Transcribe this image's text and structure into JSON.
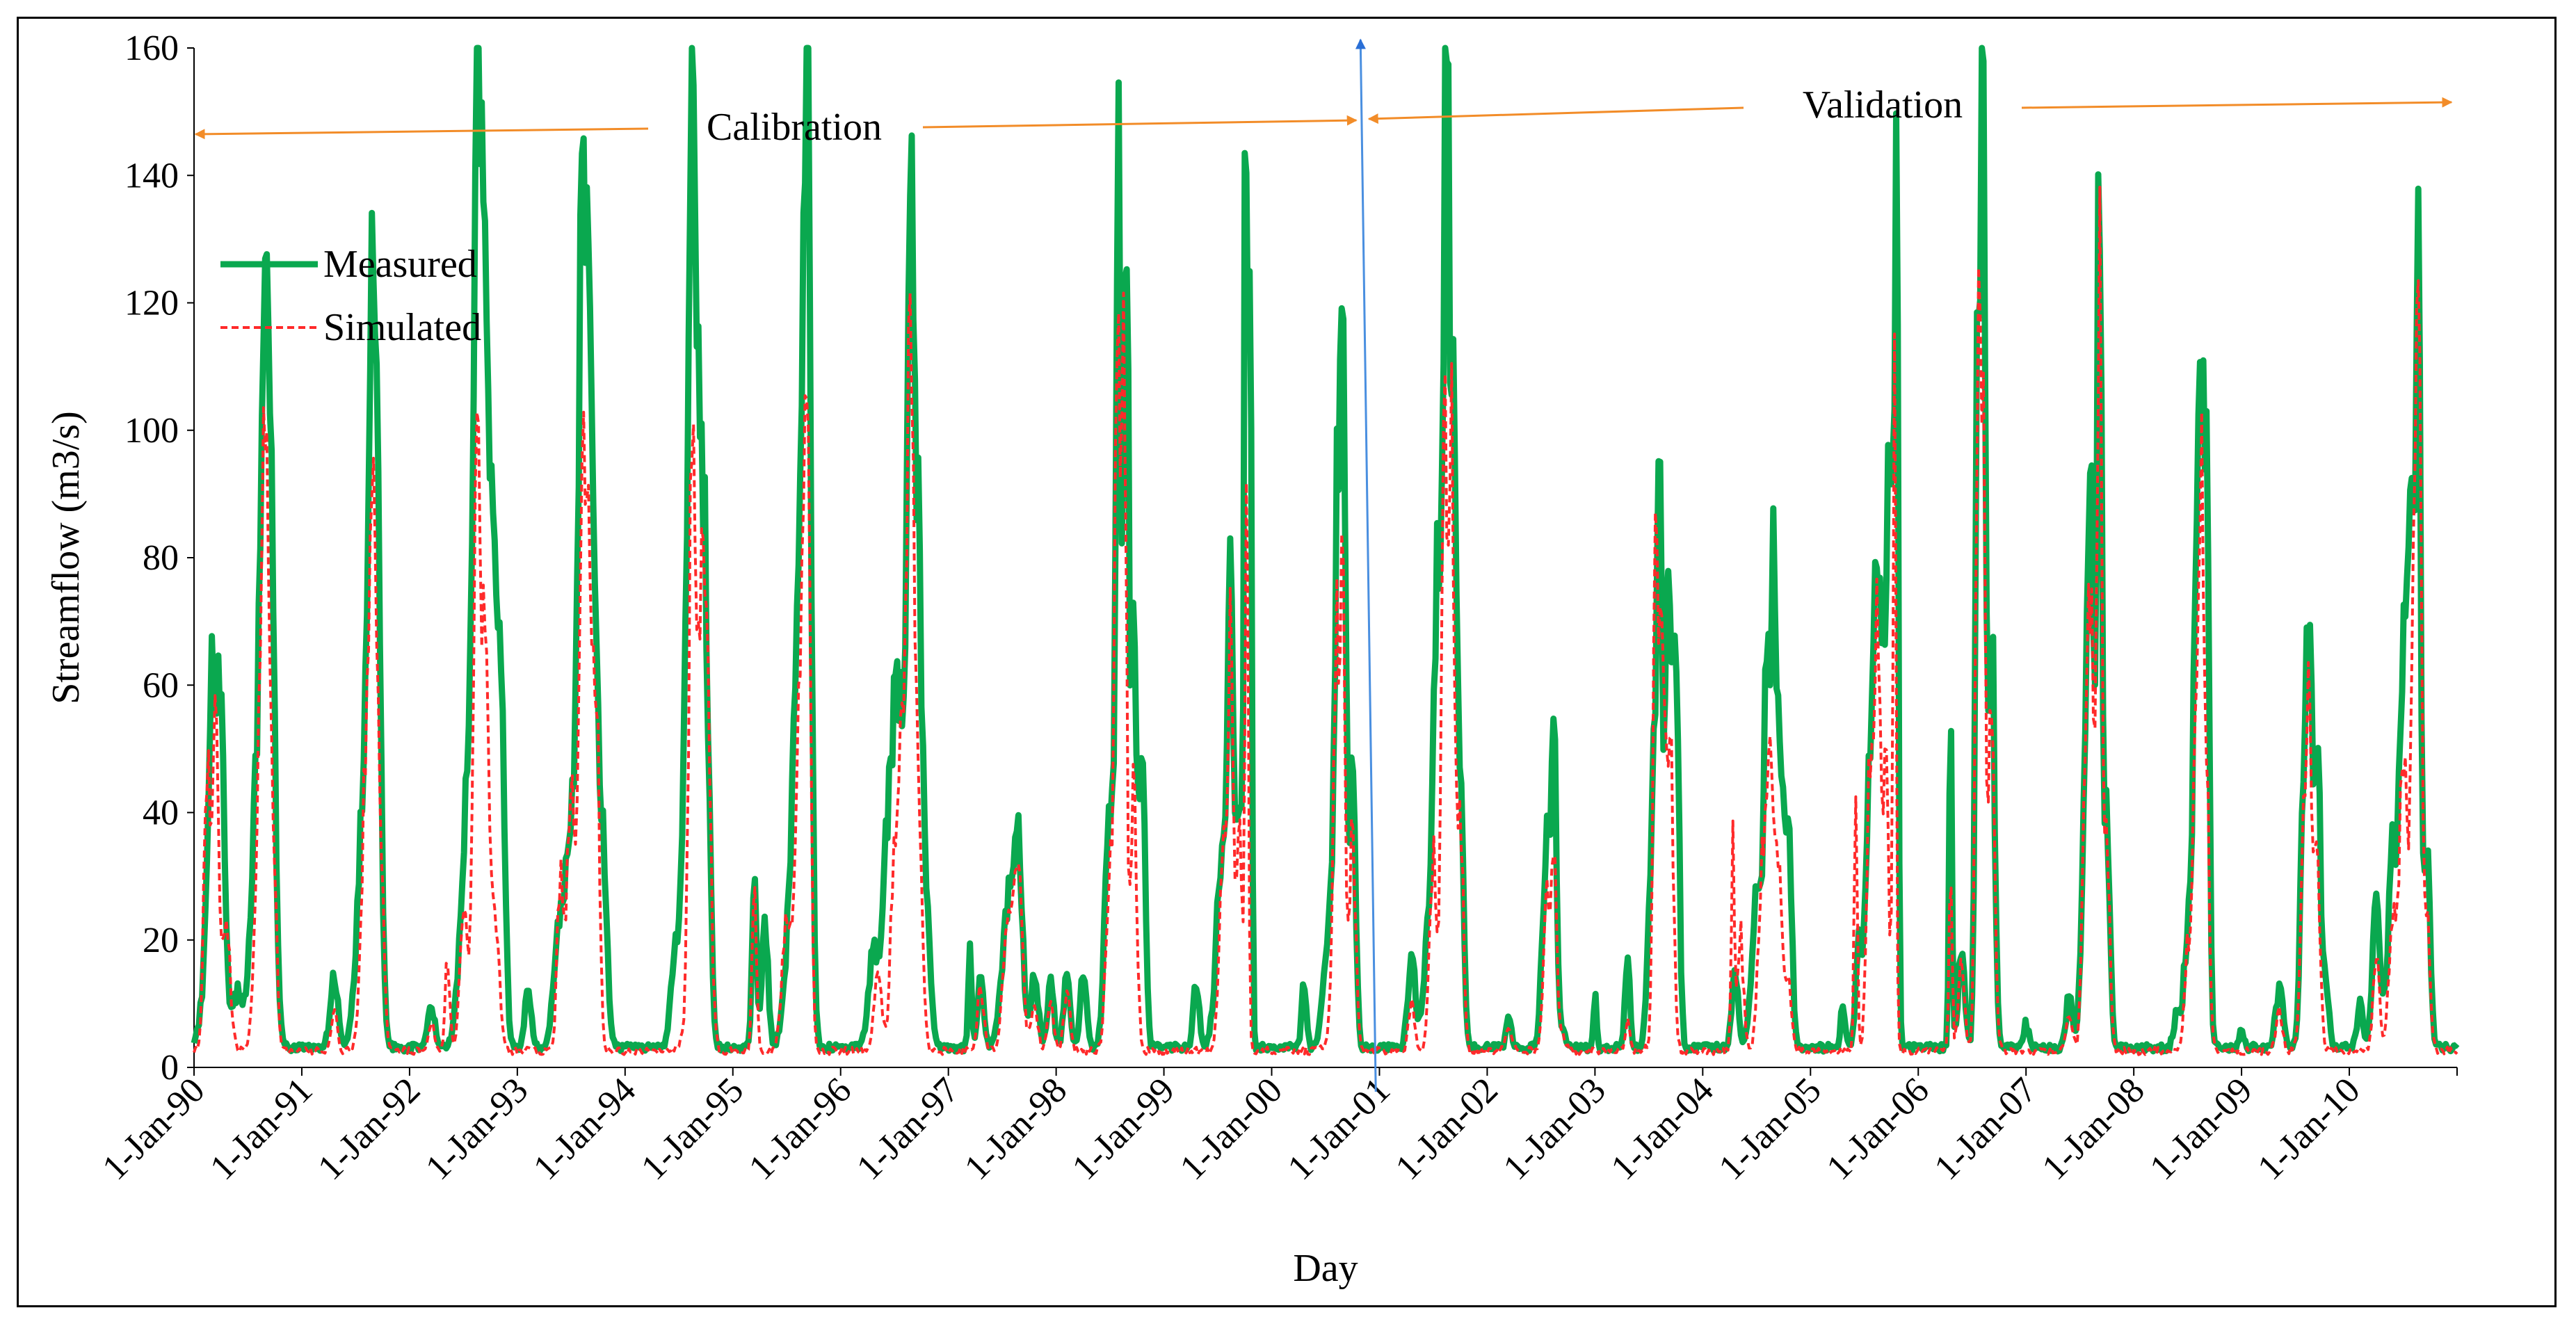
{
  "chart_data": {
    "type": "line",
    "title": "",
    "xlabel": "Day",
    "ylabel": "Streamflow (m3/s)",
    "ylim": [
      0,
      160
    ],
    "y_ticks": [
      0,
      20,
      40,
      60,
      80,
      100,
      120,
      140,
      160
    ],
    "x_tick_labels": [
      "1-Jan-90",
      "1-Jan-91",
      "1-Jan-92",
      "1-Jan-93",
      "1-Jan-94",
      "1-Jan-95",
      "1-Jan-96",
      "1-Jan-97",
      "1-Jan-98",
      "1-Jan-99",
      "1-Jan-00",
      "1-Jan-01",
      "1-Jan-02",
      "1-Jan-03",
      "1-Jan-04",
      "1-Jan-05",
      "1-Jan-06",
      "1-Jan-07",
      "1-Jan-08",
      "1-Jan-09",
      "1-Jan-10"
    ],
    "x_range_years": [
      1990,
      2011
    ],
    "grid": false,
    "legend": {
      "position": "top-left",
      "entries": [
        "Measured",
        "Simulated"
      ]
    },
    "annotations": {
      "calibration_label": "Calibration",
      "validation_label": "Validation",
      "split_year": 2000.85,
      "calibration_span_years": [
        1990,
        2000.85
      ],
      "validation_span_years": [
        2000.85,
        2011
      ]
    },
    "series": [
      {
        "name": "Measured",
        "color": "#0aa84f",
        "style": "solid",
        "baseflow": 2.5,
        "peaks": [
          [
            1990.12,
            12,
            0.07
          ],
          [
            1990.17,
            50,
            0.05
          ],
          [
            1990.25,
            51,
            0.05
          ],
          [
            1990.4,
            8,
            0.08
          ],
          [
            1990.62,
            45,
            0.1
          ],
          [
            1990.66,
            65,
            0.05
          ],
          [
            1990.72,
            55,
            0.05
          ],
          [
            1991.3,
            11,
            0.05
          ],
          [
            1991.6,
            40,
            0.1
          ],
          [
            1991.65,
            66,
            0.05
          ],
          [
            1991.7,
            60,
            0.05
          ],
          [
            1992.2,
            6,
            0.05
          ],
          [
            1992.5,
            12,
            0.08
          ],
          [
            1992.6,
            50,
            0.1
          ],
          [
            1992.63,
            111,
            0.04
          ],
          [
            1992.7,
            90,
            0.05
          ],
          [
            1992.78,
            65,
            0.05
          ],
          [
            1992.85,
            50,
            0.05
          ],
          [
            1993.1,
            10,
            0.04
          ],
          [
            1993.4,
            18,
            0.08
          ],
          [
            1993.55,
            40,
            0.1
          ],
          [
            1993.6,
            92,
            0.04
          ],
          [
            1993.66,
            83,
            0.04
          ],
          [
            1993.72,
            60,
            0.05
          ],
          [
            1993.8,
            28,
            0.05
          ],
          [
            1994.45,
            10,
            0.05
          ],
          [
            1994.58,
            50,
            0.08
          ],
          [
            1994.62,
            89,
            0.04
          ],
          [
            1994.68,
            80,
            0.05
          ],
          [
            1994.75,
            62,
            0.05
          ],
          [
            1995.2,
            27,
            0.03
          ],
          [
            1995.3,
            19,
            0.04
          ],
          [
            1995.6,
            45,
            0.1
          ],
          [
            1995.65,
            53,
            0.05
          ],
          [
            1995.7,
            111,
            0.04
          ],
          [
            1996.3,
            15,
            0.06
          ],
          [
            1996.45,
            32,
            0.08
          ],
          [
            1996.55,
            45,
            0.08
          ],
          [
            1996.65,
            111,
            0.04
          ],
          [
            1996.72,
            75,
            0.05
          ],
          [
            1996.8,
            20,
            0.05
          ],
          [
            1997.2,
            18,
            0.02
          ],
          [
            1997.3,
            11,
            0.04
          ],
          [
            1997.55,
            20,
            0.08
          ],
          [
            1997.65,
            26,
            0.05
          ],
          [
            1997.8,
            11,
            0.05
          ],
          [
            1997.95,
            10,
            0.04
          ],
          [
            1998.1,
            12,
            0.04
          ],
          [
            1998.25,
            12,
            0.04
          ],
          [
            1998.5,
            40,
            0.06
          ],
          [
            1998.58,
            136,
            0.03
          ],
          [
            1998.65,
            127,
            0.03
          ],
          [
            1998.72,
            60,
            0.04
          ],
          [
            1998.8,
            43,
            0.04
          ],
          [
            1999.3,
            10,
            0.04
          ],
          [
            1999.55,
            30,
            0.08
          ],
          [
            1999.62,
            62,
            0.03
          ],
          [
            1999.7,
            35,
            0.05
          ],
          [
            1999.76,
            145,
            0.02
          ],
          [
            1999.8,
            130,
            0.02
          ],
          [
            2000.3,
            11,
            0.03
          ],
          [
            2000.55,
            20,
            0.08
          ],
          [
            2000.62,
            79,
            0.04
          ],
          [
            2000.67,
            83,
            0.03
          ],
          [
            2000.75,
            43,
            0.04
          ],
          [
            2001.3,
            14,
            0.05
          ],
          [
            2001.45,
            15,
            0.06
          ],
          [
            2001.55,
            75,
            0.06
          ],
          [
            2001.62,
            141,
            0.03
          ],
          [
            2001.68,
            98,
            0.04
          ],
          [
            2001.75,
            42,
            0.04
          ],
          [
            2002.2,
            5,
            0.03
          ],
          [
            2002.55,
            30,
            0.05
          ],
          [
            2002.62,
            43,
            0.03
          ],
          [
            2003.0,
            8,
            0.02
          ],
          [
            2003.3,
            14,
            0.03
          ],
          [
            2003.55,
            42,
            0.06
          ],
          [
            2003.6,
            77,
            0.03
          ],
          [
            2003.68,
            69,
            0.04
          ],
          [
            2003.75,
            62,
            0.04
          ],
          [
            2004.3,
            12,
            0.04
          ],
          [
            2004.5,
            25,
            0.06
          ],
          [
            2004.6,
            59,
            0.04
          ],
          [
            2004.66,
            61,
            0.03
          ],
          [
            2004.72,
            44,
            0.05
          ],
          [
            2004.8,
            30,
            0.04
          ],
          [
            2005.3,
            6,
            0.03
          ],
          [
            2005.45,
            17,
            0.04
          ],
          [
            2005.55,
            43,
            0.05
          ],
          [
            2005.62,
            67,
            0.04
          ],
          [
            2005.7,
            63,
            0.05
          ],
          [
            2005.76,
            78,
            0.04
          ],
          [
            2005.8,
            115,
            0.02
          ],
          [
            2006.3,
            46,
            0.02
          ],
          [
            2006.4,
            17,
            0.04
          ],
          [
            2006.55,
            106,
            0.03
          ],
          [
            2006.6,
            144,
            0.03
          ],
          [
            2006.68,
            65,
            0.04
          ],
          [
            2007.0,
            4,
            0.03
          ],
          [
            2007.4,
            8,
            0.04
          ],
          [
            2007.55,
            35,
            0.05
          ],
          [
            2007.6,
            71,
            0.04
          ],
          [
            2007.68,
            127,
            0.03
          ],
          [
            2007.75,
            35,
            0.04
          ],
          [
            2008.4,
            6,
            0.04
          ],
          [
            2008.5,
            17,
            0.05
          ],
          [
            2008.58,
            66,
            0.04
          ],
          [
            2008.63,
            88,
            0.03
          ],
          [
            2008.68,
            80,
            0.03
          ],
          [
            2009.0,
            3,
            0.03
          ],
          [
            2009.35,
            9,
            0.05
          ],
          [
            2009.58,
            40,
            0.04
          ],
          [
            2009.63,
            53,
            0.03
          ],
          [
            2009.7,
            48,
            0.04
          ],
          [
            2009.78,
            10,
            0.04
          ],
          [
            2010.1,
            7,
            0.04
          ],
          [
            2010.25,
            21,
            0.05
          ],
          [
            2010.4,
            30,
            0.06
          ],
          [
            2010.5,
            58,
            0.05
          ],
          [
            2010.58,
            73,
            0.05
          ],
          [
            2010.64,
            105,
            0.03
          ],
          [
            2010.72,
            30,
            0.04
          ]
        ]
      },
      {
        "name": "Simulated",
        "color": "#ff2a2a",
        "style": "dashed",
        "baseflow": 2.0,
        "peaks": [
          [
            1990.12,
            46,
            0.04
          ],
          [
            1990.2,
            48,
            0.04
          ],
          [
            1990.3,
            20,
            0.05
          ],
          [
            1990.62,
            45,
            0.06
          ],
          [
            1990.66,
            61,
            0.04
          ],
          [
            1990.72,
            40,
            0.05
          ],
          [
            1991.3,
            6,
            0.04
          ],
          [
            1991.6,
            40,
            0.06
          ],
          [
            1991.66,
            62,
            0.04
          ],
          [
            1991.72,
            35,
            0.05
          ],
          [
            1992.2,
            4,
            0.04
          ],
          [
            1992.35,
            14,
            0.03
          ],
          [
            1992.5,
            23,
            0.05
          ],
          [
            1992.62,
            89,
            0.04
          ],
          [
            1992.7,
            70,
            0.05
          ],
          [
            1992.8,
            20,
            0.05
          ],
          [
            1993.4,
            29,
            0.04
          ],
          [
            1993.5,
            45,
            0.05
          ],
          [
            1993.6,
            75,
            0.04
          ],
          [
            1993.66,
            76,
            0.04
          ],
          [
            1993.73,
            57,
            0.04
          ],
          [
            1994.62,
            85,
            0.04
          ],
          [
            1994.7,
            56,
            0.05
          ],
          [
            1994.76,
            50,
            0.05
          ],
          [
            1995.2,
            23,
            0.03
          ],
          [
            1995.5,
            20,
            0.06
          ],
          [
            1995.62,
            50,
            0.05
          ],
          [
            1995.69,
            104,
            0.04
          ],
          [
            1996.35,
            12,
            0.05
          ],
          [
            1996.5,
            30,
            0.05
          ],
          [
            1996.58,
            45,
            0.05
          ],
          [
            1996.65,
            102,
            0.04
          ],
          [
            1996.72,
            40,
            0.05
          ],
          [
            1997.3,
            10,
            0.04
          ],
          [
            1997.55,
            18,
            0.06
          ],
          [
            1997.65,
            23,
            0.05
          ],
          [
            1997.8,
            8,
            0.04
          ],
          [
            1997.95,
            7,
            0.04
          ],
          [
            1998.1,
            10,
            0.04
          ],
          [
            1998.5,
            30,
            0.05
          ],
          [
            1998.57,
            118,
            0.03
          ],
          [
            1998.63,
            104,
            0.03
          ],
          [
            1998.72,
            40,
            0.04
          ],
          [
            1999.55,
            28,
            0.05
          ],
          [
            1999.62,
            56,
            0.03
          ],
          [
            1999.7,
            33,
            0.04
          ],
          [
            1999.77,
            95,
            0.02
          ],
          [
            2000.6,
            60,
            0.04
          ],
          [
            2000.66,
            68,
            0.03
          ],
          [
            2000.75,
            35,
            0.04
          ],
          [
            2001.3,
            8,
            0.04
          ],
          [
            2001.5,
            28,
            0.05
          ],
          [
            2001.6,
            107,
            0.03
          ],
          [
            2001.67,
            90,
            0.04
          ],
          [
            2001.75,
            35,
            0.04
          ],
          [
            2002.2,
            3,
            0.04
          ],
          [
            2002.55,
            22,
            0.04
          ],
          [
            2002.62,
            27,
            0.03
          ],
          [
            2003.3,
            5,
            0.03
          ],
          [
            2003.56,
            70,
            0.03
          ],
          [
            2003.62,
            66,
            0.04
          ],
          [
            2003.7,
            45,
            0.04
          ],
          [
            2004.28,
            34,
            0.02
          ],
          [
            2004.35,
            18,
            0.04
          ],
          [
            2004.55,
            25,
            0.05
          ],
          [
            2004.62,
            41,
            0.04
          ],
          [
            2004.7,
            30,
            0.05
          ],
          [
            2004.8,
            10,
            0.04
          ],
          [
            2005.42,
            37,
            0.02
          ],
          [
            2005.55,
            40,
            0.04
          ],
          [
            2005.62,
            58,
            0.04
          ],
          [
            2005.7,
            40,
            0.04
          ],
          [
            2005.78,
            104,
            0.02
          ],
          [
            2006.3,
            30,
            0.02
          ],
          [
            2006.4,
            14,
            0.04
          ],
          [
            2006.55,
            101,
            0.03
          ],
          [
            2006.6,
            100,
            0.03
          ],
          [
            2006.68,
            50,
            0.04
          ],
          [
            2007.4,
            6,
            0.04
          ],
          [
            2007.55,
            33,
            0.04
          ],
          [
            2007.6,
            60,
            0.04
          ],
          [
            2007.68,
            120,
            0.03
          ],
          [
            2007.75,
            30,
            0.04
          ],
          [
            2008.5,
            15,
            0.04
          ],
          [
            2008.58,
            50,
            0.04
          ],
          [
            2008.63,
            74,
            0.03
          ],
          [
            2008.68,
            40,
            0.03
          ],
          [
            2009.35,
            6,
            0.04
          ],
          [
            2009.58,
            30,
            0.04
          ],
          [
            2009.63,
            44,
            0.03
          ],
          [
            2009.7,
            30,
            0.04
          ],
          [
            2010.25,
            15,
            0.04
          ],
          [
            2010.4,
            20,
            0.05
          ],
          [
            2010.5,
            45,
            0.05
          ],
          [
            2010.6,
            70,
            0.04
          ],
          [
            2010.65,
            101,
            0.03
          ],
          [
            2010.72,
            20,
            0.04
          ]
        ]
      }
    ]
  }
}
